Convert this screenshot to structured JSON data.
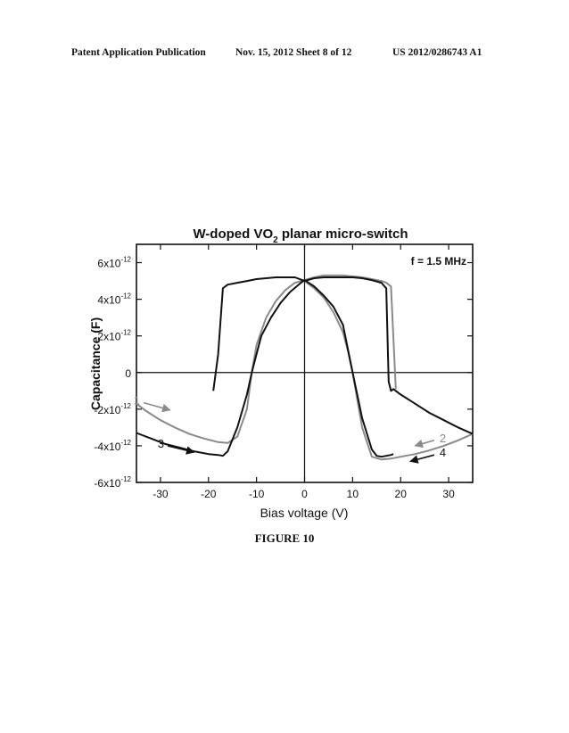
{
  "header": {
    "publication": "Patent Application Publication",
    "date_sheet": "Nov. 15, 2012   Sheet 8 of 12",
    "number": "US 2012/0286743 A1"
  },
  "caption": "FIGURE 10",
  "chart_data": {
    "type": "line",
    "title_main": "W-doped VO",
    "title_sub": "2",
    "title_rest": " planar micro-switch",
    "annotation": "f = 1.5 MHz",
    "xlabel": "Bias voltage (V)",
    "ylabel": "Capacitance (F)",
    "xlim": [
      -35,
      35
    ],
    "ylim": [
      -6e-12,
      7e-12
    ],
    "x_ticks": [
      -30,
      -20,
      -10,
      0,
      10,
      20,
      30
    ],
    "x_tick_labels": [
      "-30",
      "-20",
      "-10",
      "0",
      "10",
      "20",
      "30"
    ],
    "y_ticks": [
      -6e-12,
      -4e-12,
      -2e-12,
      0,
      2e-12,
      4e-12,
      6e-12
    ],
    "y_tick_labels": [
      {
        "base": "-6x10",
        "exp": "-12"
      },
      {
        "base": "-4x10",
        "exp": "-12"
      },
      {
        "base": "-2x10",
        "exp": "-12"
      },
      {
        "base": "0",
        "exp": ""
      },
      {
        "base": "2x10",
        "exp": "-12"
      },
      {
        "base": "4x10",
        "exp": "-12"
      },
      {
        "base": "6x10",
        "exp": "-12"
      }
    ],
    "grid": false,
    "series": [
      {
        "label": "1",
        "color": "#8a8a8a",
        "x": [
          -35,
          -33,
          -30,
          -27,
          -24,
          -21,
          -18,
          -16,
          -14,
          -12,
          -11,
          -10,
          -8,
          -6,
          -4,
          -2,
          0,
          2,
          4,
          6,
          8,
          10,
          12,
          14,
          16,
          17,
          18,
          19
        ],
        "y": [
          -1.7e-12,
          -2.1e-12,
          -2.6e-12,
          -3e-12,
          -3.35e-12,
          -3.6e-12,
          -3.8e-12,
          -3.85e-12,
          -3.5e-12,
          -2e-12,
          0.0,
          1.5e-12,
          3e-12,
          3.9e-12,
          4.5e-12,
          4.9e-12,
          5.05e-12,
          5.2e-12,
          5.3e-12,
          5.3e-12,
          5.3e-12,
          5.25e-12,
          5.2e-12,
          5.1e-12,
          5e-12,
          4.9e-12,
          4.7e-12,
          -9e-13
        ]
      },
      {
        "label": "2",
        "color": "#8a8a8a",
        "x": [
          35,
          32,
          29,
          26,
          23,
          20,
          18,
          16,
          14,
          12,
          11,
          10,
          9,
          8,
          6,
          4,
          2,
          0
        ],
        "y": [
          -3.35e-12,
          -3.7e-12,
          -4e-12,
          -4.25e-12,
          -4.45e-12,
          -4.6e-12,
          -4.7e-12,
          -4.75e-12,
          -4.6e-12,
          -3e-12,
          -1.5e-12,
          0.0,
          1.2e-12,
          2.2e-12,
          3.3e-12,
          4.1e-12,
          4.6e-12,
          5e-12
        ]
      },
      {
        "label": "3",
        "color": "#111111",
        "x": [
          -35,
          -32,
          -29,
          -26,
          -23,
          -20,
          -18,
          -17,
          -16,
          -14,
          -12,
          -11,
          -10,
          -9,
          -7,
          -5,
          -3,
          -1,
          0,
          2,
          4,
          6,
          8,
          10,
          12,
          14,
          15,
          16,
          17,
          18,
          18.5
        ],
        "y": [
          -3.3e-12,
          -3.6e-12,
          -3.9e-12,
          -4.1e-12,
          -4.3e-12,
          -4.45e-12,
          -4.5e-12,
          -4.55e-12,
          -4.3e-12,
          -3e-12,
          -1.2e-12,
          0.0,
          1e-12,
          2e-12,
          3e-12,
          3.8e-12,
          4.4e-12,
          4.85e-12,
          5.05e-12,
          4.7e-12,
          4.2e-12,
          3.6e-12,
          2.6e-12,
          0.0,
          -2.5e-12,
          -4.2e-12,
          -4.55e-12,
          -4.6e-12,
          -4.55e-12,
          -4.5e-12,
          -4.45e-12
        ]
      },
      {
        "label": "4",
        "color": "#111111",
        "x": [
          35,
          32,
          29,
          26,
          23,
          20,
          18.5,
          18,
          17.5,
          17,
          16,
          14,
          12,
          10,
          8,
          6,
          4,
          2,
          0,
          -2,
          -4,
          -6,
          -8,
          -10,
          -12,
          -14,
          -16,
          -17,
          -18,
          -19
        ],
        "y": [
          -3.35e-12,
          -3e-12,
          -2.6e-12,
          -2.2e-12,
          -1.7e-12,
          -1.2e-12,
          -9e-13,
          -1e-12,
          -5e-13,
          4.6e-12,
          4.9e-12,
          5.05e-12,
          5.15e-12,
          5.2e-12,
          5.2e-12,
          5.2e-12,
          5.2e-12,
          5.15e-12,
          5e-12,
          5.2e-12,
          5.2e-12,
          5.2e-12,
          5.15e-12,
          5.1e-12,
          5e-12,
          4.9e-12,
          4.8e-12,
          4.6e-12,
          1e-12,
          -1e-12
        ]
      }
    ],
    "arrows": [
      {
        "label": "1",
        "color": "#8a8a8a",
        "from": [
          -33.5,
          -1.65e-12
        ],
        "to": [
          -28,
          -2.05e-12
        ]
      },
      {
        "label": "2",
        "color": "#8a8a8a",
        "from": [
          27,
          -3.7e-12
        ],
        "to": [
          23,
          -4e-12
        ]
      },
      {
        "label": "3",
        "color": "#111111",
        "from": [
          -28.5,
          -4e-12
        ],
        "to": [
          -23,
          -4.35e-12
        ]
      },
      {
        "label": "4",
        "color": "#111111",
        "from": [
          27,
          -4.5e-12
        ],
        "to": [
          22,
          -4.85e-12
        ]
      }
    ]
  }
}
